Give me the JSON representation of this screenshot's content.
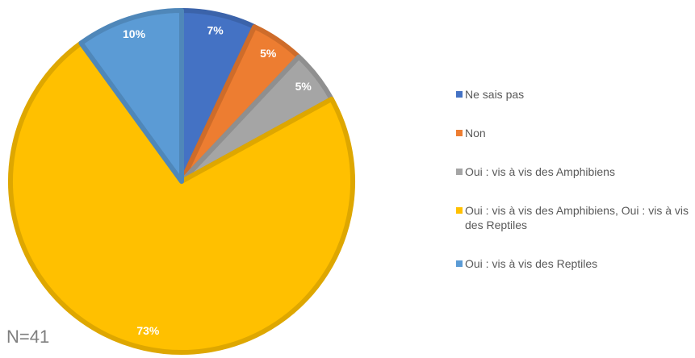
{
  "chart_data": {
    "type": "pie",
    "categories": [
      "Ne sais pas",
      "Non",
      "Oui : vis à vis des Amphibiens",
      "Oui : vis à vis des Amphibiens, Oui : vis à vis des Reptiles",
      "Oui : vis à vis des Reptiles"
    ],
    "values": [
      7,
      5,
      5,
      73,
      10
    ],
    "value_labels": [
      "7%",
      "5%",
      "5%",
      "73%",
      "10%"
    ],
    "colors": [
      "#4472c4",
      "#ed7d31",
      "#a5a5a5",
      "#ffc000",
      "#5b9bd5"
    ],
    "legend": "right",
    "annotation": "N=41"
  }
}
